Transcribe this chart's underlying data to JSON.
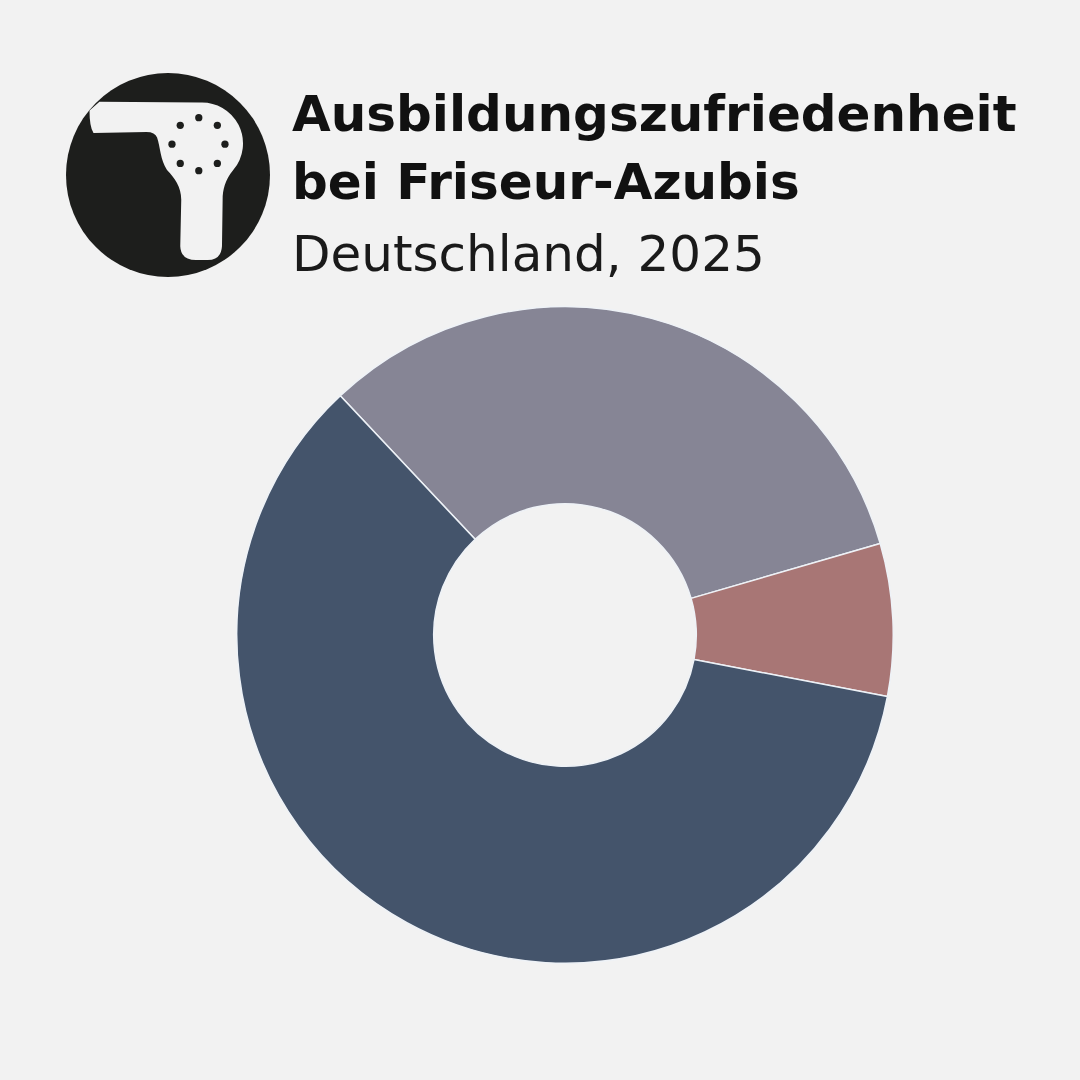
{
  "chart_data": {
    "type": "donut",
    "title": "Ausbildungszufriedenheit bei Friseur-Azubis",
    "subtitle": "Deutschland, 2025",
    "categories": [
      null,
      null,
      null
    ],
    "values": [
      32.5,
      7.5,
      60
    ],
    "colors": [
      "#868595",
      "#a87675",
      "#44546b"
    ]
  }
}
